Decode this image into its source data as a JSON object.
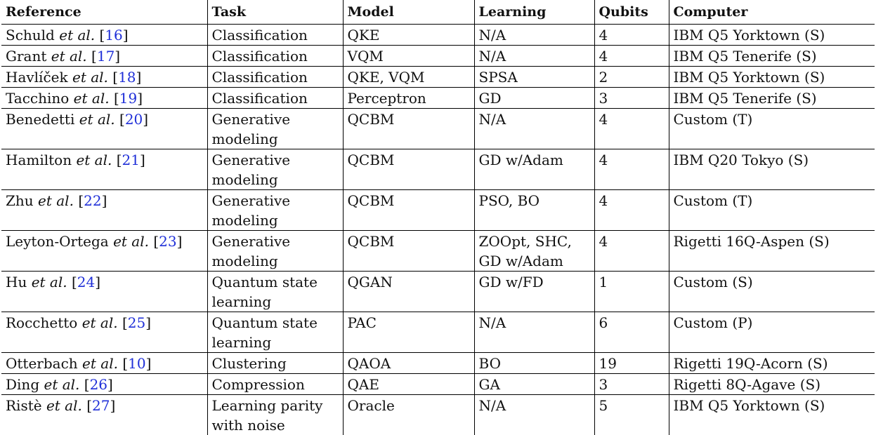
{
  "table": {
    "headers": [
      "Reference",
      "Task",
      "Model",
      "Learning",
      "Qubits",
      "Computer"
    ],
    "rows": [
      {
        "author": "Schuld",
        "ref": "16",
        "task": "Classification",
        "model": "QKE",
        "learning": "N/A",
        "qubits": "4",
        "computer": "IBM Q5 Yorktown (S)"
      },
      {
        "author": "Grant",
        "ref": "17",
        "task": "Classification",
        "model": "VQM",
        "learning": "N/A",
        "qubits": "4",
        "computer": "IBM Q5 Tenerife (S)"
      },
      {
        "author": "Havlíček",
        "ref": "18",
        "task": "Classification",
        "model": "QKE, VQM",
        "learning": "SPSA",
        "qubits": "2",
        "computer": "IBM Q5 Yorktown (S)"
      },
      {
        "author": "Tacchino",
        "ref": "19",
        "task": "Classification",
        "model": "Perceptron",
        "learning": "GD",
        "qubits": "3",
        "computer": "IBM Q5 Tenerife (S)"
      },
      {
        "author": "Benedetti",
        "ref": "20",
        "task": "Generative modeling",
        "model": "QCBM",
        "learning": "N/A",
        "qubits": "4",
        "computer": "Custom (T)"
      },
      {
        "author": "Hamilton",
        "ref": "21",
        "task": "Generative modeling",
        "model": "QCBM",
        "learning": "GD w/Adam",
        "qubits": "4",
        "computer": "IBM Q20 Tokyo (S)"
      },
      {
        "author": "Zhu",
        "ref": "22",
        "task": "Generative modeling",
        "model": "QCBM",
        "learning": "PSO, BO",
        "qubits": "4",
        "computer": "Custom (T)"
      },
      {
        "author": "Leyton-Ortega",
        "ref": "23",
        "task": "Generative modeling",
        "model": "QCBM",
        "learning": "ZOOpt, SHC, GD w/Adam",
        "qubits": "4",
        "computer": "Rigetti 16Q-Aspen (S)"
      },
      {
        "author": "Hu",
        "ref": "24",
        "task": "Quantum state learning",
        "model": "QGAN",
        "learning": "GD w/FD",
        "qubits": "1",
        "computer": "Custom (S)"
      },
      {
        "author": "Rocchetto",
        "ref": "25",
        "task": "Quantum state learning",
        "model": "PAC",
        "learning": "N/A",
        "qubits": "6",
        "computer": "Custom (P)"
      },
      {
        "author": "Otterbach",
        "ref": "10",
        "task": "Clustering",
        "model": "QAOA",
        "learning": "BO",
        "qubits": "19",
        "computer": "Rigetti 19Q-Acorn (S)"
      },
      {
        "author": "Ding",
        "ref": "26",
        "task": "Compression",
        "model": "QAE",
        "learning": "GA",
        "qubits": "3",
        "computer": "Rigetti 8Q-Agave (S)"
      },
      {
        "author": "Ristè",
        "ref": "27",
        "task": "Learning parity with noise",
        "model": "Oracle",
        "learning": "N/A",
        "qubits": "5",
        "computer": "IBM Q5 Yorktown (S)"
      }
    ],
    "et_al": "et al.",
    "link_color": "#1f2fd8"
  }
}
